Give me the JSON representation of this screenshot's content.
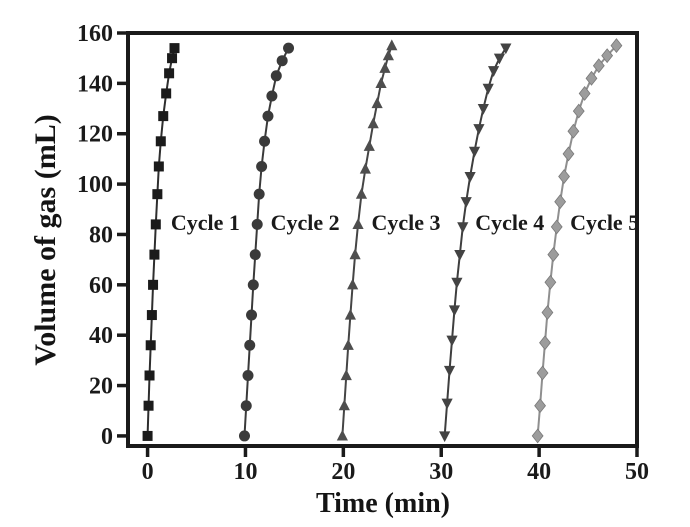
{
  "figure": {
    "background": "#ffffff",
    "frame_color": "#1a1a1a"
  },
  "chart_data": {
    "type": "line",
    "title": "",
    "xlabel": "Time (min)",
    "ylabel": "Volume of gas (mL)",
    "xlim": [
      -2,
      50
    ],
    "ylim": [
      -4,
      160
    ],
    "x_ticks": [
      0,
      10,
      20,
      30,
      40,
      50
    ],
    "y_ticks": [
      0,
      20,
      40,
      60,
      80,
      100,
      120,
      140,
      160
    ],
    "grid": false,
    "legend_position": "none",
    "series": [
      {
        "name": "Cycle 1",
        "marker": "square",
        "color": "#1b1b1b",
        "line_color": "#2e2e2e",
        "points": [
          [
            0.0,
            0
          ],
          [
            0.1,
            12
          ],
          [
            0.2,
            24
          ],
          [
            0.32,
            36
          ],
          [
            0.44,
            48
          ],
          [
            0.56,
            60
          ],
          [
            0.7,
            72
          ],
          [
            0.84,
            84
          ],
          [
            1.0,
            96
          ],
          [
            1.15,
            107
          ],
          [
            1.35,
            117
          ],
          [
            1.6,
            127
          ],
          [
            1.9,
            136
          ],
          [
            2.2,
            144
          ],
          [
            2.5,
            150
          ],
          [
            2.75,
            154
          ]
        ]
      },
      {
        "name": "Cycle 2",
        "marker": "circle",
        "color": "#3a3a3a",
        "line_color": "#3a3a3a",
        "points": [
          [
            9.9,
            0
          ],
          [
            10.08,
            12
          ],
          [
            10.26,
            24
          ],
          [
            10.44,
            36
          ],
          [
            10.62,
            48
          ],
          [
            10.8,
            60
          ],
          [
            11.0,
            72
          ],
          [
            11.2,
            84
          ],
          [
            11.4,
            96
          ],
          [
            11.65,
            107
          ],
          [
            11.95,
            117
          ],
          [
            12.3,
            127
          ],
          [
            12.7,
            135
          ],
          [
            13.15,
            143
          ],
          [
            13.75,
            149
          ],
          [
            14.4,
            154
          ]
        ]
      },
      {
        "name": "Cycle 3",
        "marker": "triangle-up",
        "color": "#4e4e4e",
        "line_color": "#454545",
        "points": [
          [
            19.9,
            0
          ],
          [
            20.1,
            12
          ],
          [
            20.3,
            24
          ],
          [
            20.5,
            36
          ],
          [
            20.72,
            48
          ],
          [
            20.95,
            60
          ],
          [
            21.2,
            72
          ],
          [
            21.5,
            84
          ],
          [
            21.85,
            96
          ],
          [
            22.25,
            106
          ],
          [
            22.65,
            115
          ],
          [
            23.05,
            124
          ],
          [
            23.45,
            132
          ],
          [
            23.85,
            140
          ],
          [
            24.25,
            146
          ],
          [
            24.6,
            151
          ],
          [
            24.95,
            155
          ]
        ]
      },
      {
        "name": "Cycle 4",
        "marker": "triangle-down",
        "color": "#434343",
        "line_color": "#3e3e3e",
        "points": [
          [
            30.35,
            0
          ],
          [
            30.6,
            13
          ],
          [
            30.85,
            26
          ],
          [
            31.1,
            38
          ],
          [
            31.35,
            50
          ],
          [
            31.6,
            61
          ],
          [
            31.9,
            72
          ],
          [
            32.2,
            83
          ],
          [
            32.55,
            93
          ],
          [
            32.95,
            103
          ],
          [
            33.4,
            113
          ],
          [
            33.85,
            122
          ],
          [
            34.3,
            130
          ],
          [
            34.8,
            138
          ],
          [
            35.35,
            145
          ],
          [
            35.95,
            150
          ],
          [
            36.6,
            154
          ]
        ]
      },
      {
        "name": "Cycle 5",
        "marker": "diamond",
        "color": "#9c9c9c",
        "line_color": "#8f8f8f",
        "points": [
          [
            39.85,
            0
          ],
          [
            40.1,
            12
          ],
          [
            40.35,
            25
          ],
          [
            40.6,
            37
          ],
          [
            40.85,
            49
          ],
          [
            41.15,
            61
          ],
          [
            41.45,
            72
          ],
          [
            41.8,
            83
          ],
          [
            42.15,
            93
          ],
          [
            42.55,
            103
          ],
          [
            43.0,
            112
          ],
          [
            43.5,
            121
          ],
          [
            44.05,
            129
          ],
          [
            44.65,
            136
          ],
          [
            45.35,
            142
          ],
          [
            46.1,
            147
          ],
          [
            46.95,
            151
          ],
          [
            47.9,
            155
          ]
        ]
      }
    ],
    "annotations": [
      {
        "text": "Cycle 1",
        "x": 5.9,
        "y": 85
      },
      {
        "text": "Cycle 2",
        "x": 16.1,
        "y": 85
      },
      {
        "text": "Cycle 3",
        "x": 26.4,
        "y": 85
      },
      {
        "text": "Cycle 4",
        "x": 37.0,
        "y": 85
      },
      {
        "text": "Cycle 5",
        "x": 46.7,
        "y": 85
      }
    ]
  }
}
